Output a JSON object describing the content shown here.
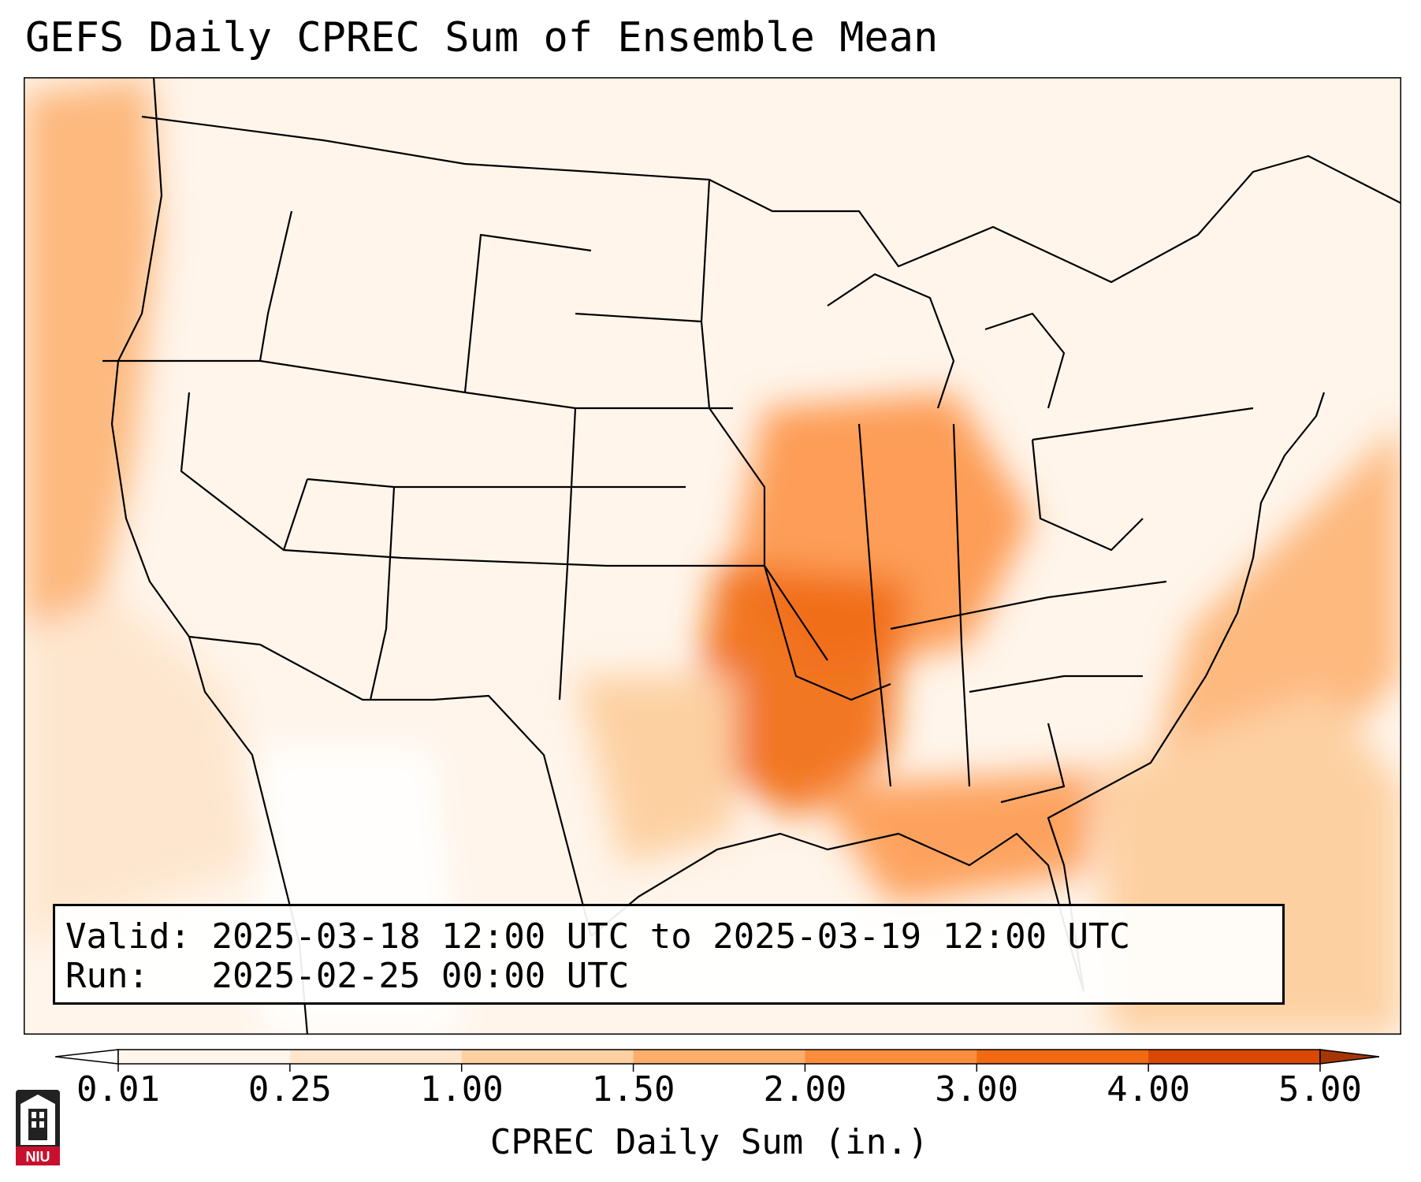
{
  "title": "GEFS Daily CPREC Sum of Ensemble Mean",
  "info": {
    "valid_label": "Valid:",
    "valid_value": "2025-03-18 12:00 UTC to 2025-03-19 12:00 UTC",
    "run_label": "Run:",
    "run_value": "2025-02-25 00:00 UTC"
  },
  "colorbar": {
    "label": "CPREC Daily Sum (in.)",
    "ticks": [
      "0.01",
      "0.25",
      "1.00",
      "1.50",
      "2.00",
      "3.00",
      "4.00",
      "5.00"
    ],
    "colors": [
      "#fff5eb",
      "#fee6ce",
      "#fdd0a2",
      "#fdae6b",
      "#fd8d3c",
      "#f16913",
      "#d94801"
    ],
    "under_color": "#ffffff",
    "over_color": "#a63603"
  },
  "logo": {
    "text": "NIU",
    "icon": "niu-logo-icon"
  },
  "map": {
    "region": "Contiguous United States",
    "precip_areas": [
      {
        "name": "Mid-South / Lower Mississippi Valley",
        "category": "2.00-3.00"
      },
      {
        "name": "Ohio Valley / Illinois / Indiana",
        "category": "1.50-2.00"
      },
      {
        "name": "Gulf Coast",
        "category": "1.50-2.00"
      },
      {
        "name": "Western Atlantic offshore",
        "category": "1.00-2.00"
      },
      {
        "name": "Pacific Northwest coast",
        "category": "1.00-1.50"
      }
    ]
  }
}
